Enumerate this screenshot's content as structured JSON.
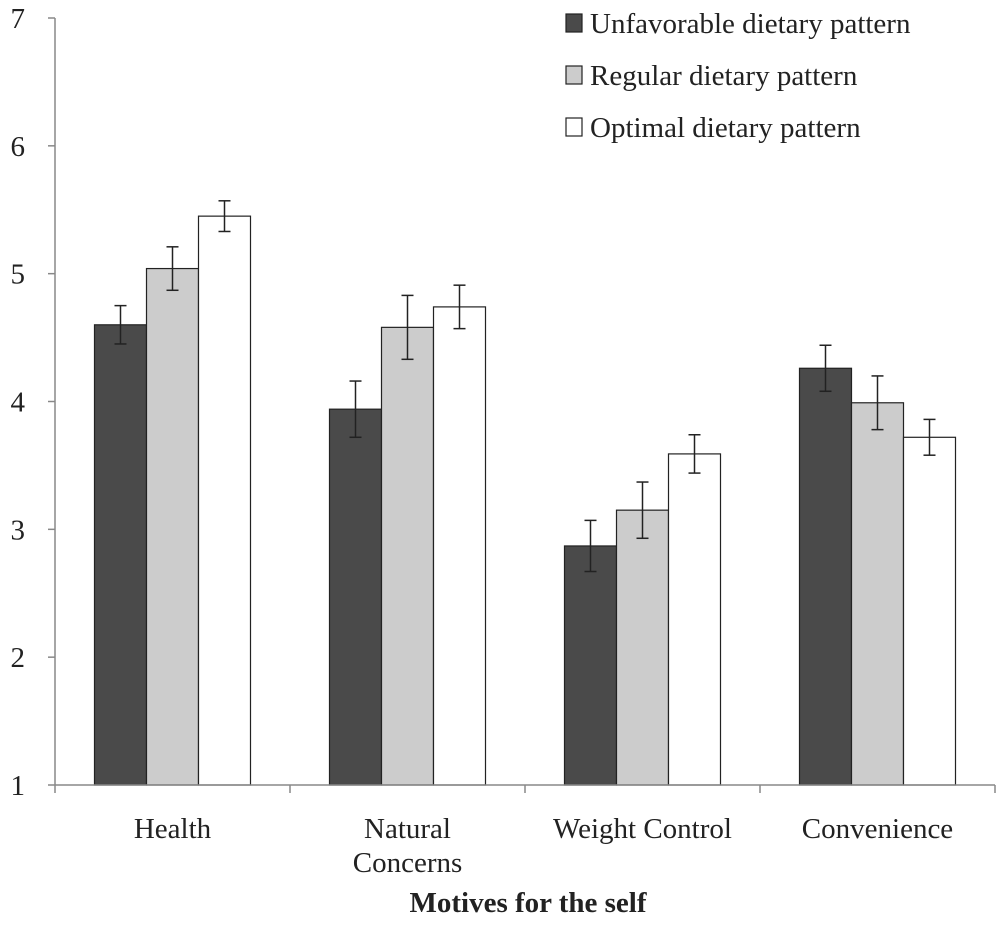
{
  "chart_data": {
    "type": "bar",
    "title": "",
    "xlabel": "Motives for the self",
    "ylabel": "",
    "ylim": [
      1,
      7
    ],
    "yticks": [
      1,
      2,
      3,
      4,
      5,
      6,
      7
    ],
    "grid": false,
    "legend_position": "top-right",
    "categories": [
      [
        "Health"
      ],
      [
        "Natural",
        "Concerns"
      ],
      [
        "Weight Control"
      ],
      [
        "Convenience"
      ]
    ],
    "series": [
      {
        "name": "Unfavorable dietary pattern",
        "color": "#4a4a4a",
        "values": [
          4.6,
          3.94,
          2.87,
          4.26
        ],
        "errors": [
          0.15,
          0.22,
          0.2,
          0.18
        ]
      },
      {
        "name": "Regular dietary pattern",
        "color": "#cccccc",
        "values": [
          5.04,
          4.58,
          3.15,
          3.99
        ],
        "errors": [
          0.17,
          0.25,
          0.22,
          0.21
        ]
      },
      {
        "name": "Optimal dietary pattern",
        "color": "#ffffff",
        "values": [
          5.45,
          4.74,
          3.59,
          3.72
        ],
        "errors": [
          0.12,
          0.17,
          0.15,
          0.14
        ]
      }
    ]
  }
}
